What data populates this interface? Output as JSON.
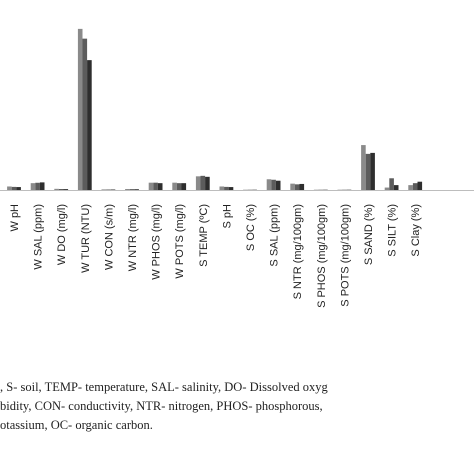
{
  "chart_data": {
    "type": "bar",
    "categories": [
      "W pH",
      "W SAL (ppm)",
      "W DO (mg/l)",
      "W TUR (NTU)",
      "W CON (s/m)",
      "W NTR (mg/l)",
      "W PHOS (mg/l)",
      "W POTS (mg/l)",
      "S TEMP (ºC)",
      "S pH",
      "S OC (%)",
      "S SAL (ppm)",
      "S NTR (mg/100gm)",
      "S PHOS (mg/100gm)",
      "S POTS (mg/100gm)",
      "S SAND (%)",
      "S SILT (%)",
      "S Clay (%)"
    ],
    "series": [
      {
        "values": [
          3.6,
          7.0,
          1.2,
          165,
          0.6,
          1.0,
          7.5,
          7.5,
          14.0,
          3.6,
          0.3,
          11.0,
          6.5,
          0.3,
          0.3,
          46.0,
          2.5,
          5.0
        ]
      },
      {
        "values": [
          3.2,
          7.4,
          1.0,
          155,
          0.5,
          0.9,
          7.5,
          7.0,
          14.5,
          3.2,
          0.3,
          10.5,
          5.8,
          0.3,
          0.3,
          37.0,
          12.0,
          7.0
        ]
      },
      {
        "values": [
          3.0,
          7.8,
          0.9,
          133,
          0.5,
          0.8,
          7.0,
          7.0,
          13.5,
          3.0,
          0.3,
          9.5,
          6.2,
          0.3,
          0.3,
          38.0,
          5.0,
          8.5
        ]
      }
    ],
    "colors": [
      "#8a8a8a",
      "#5c5c5c",
      "#2e2e2e"
    ],
    "ylim": [
      0,
      170
    ],
    "grid": false,
    "xlabel": "",
    "ylabel": ""
  },
  "caption": {
    "lines": [
      ", S- soil, TEMP- temperature, SAL- salinity, DO- Dissolved oxyg",
      "bidity, CON- conductivity, NTR- nitrogen, PHOS- phosphorous,",
      "otassium, OC- organic carbon."
    ]
  }
}
